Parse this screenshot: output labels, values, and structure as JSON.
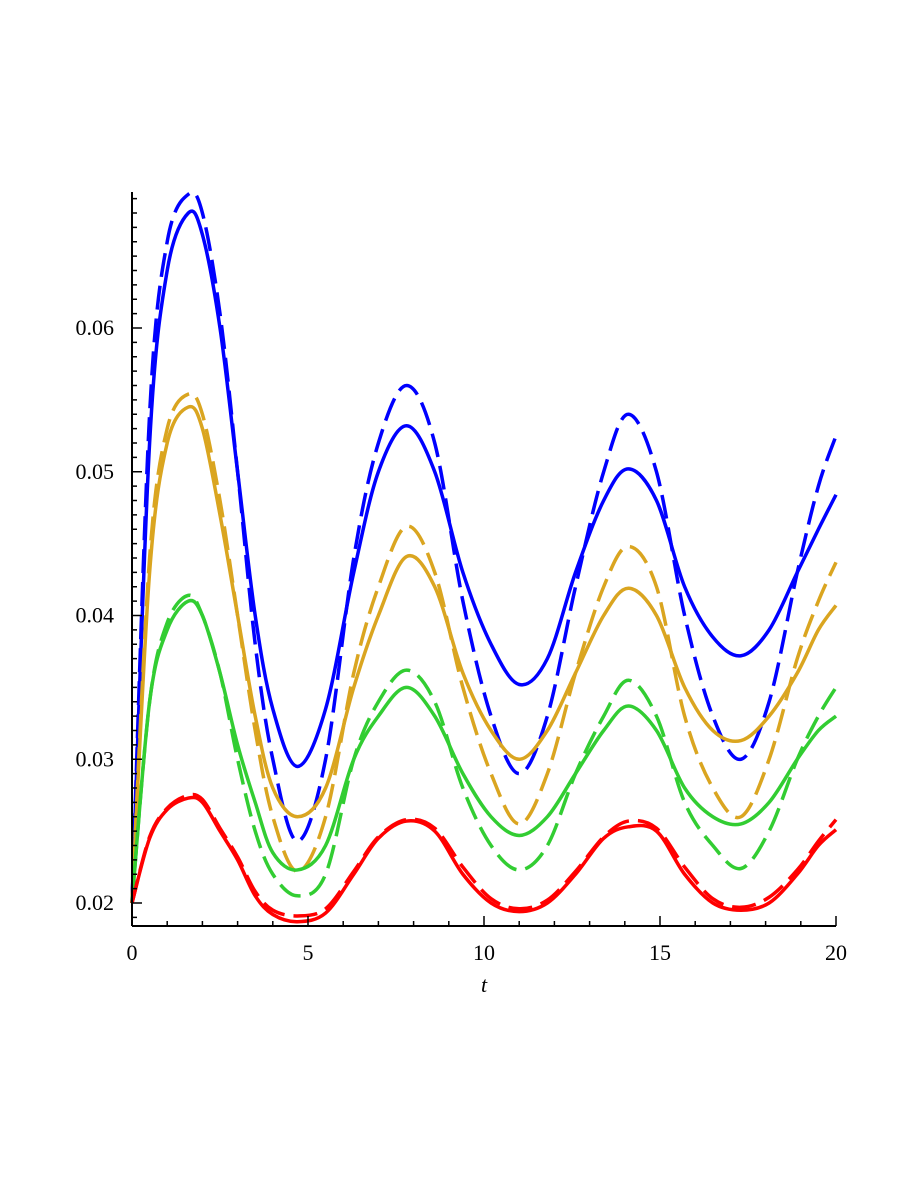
{
  "chart_data": {
    "type": "line",
    "title": "",
    "xlabel": "t",
    "ylabel": "",
    "xlim": [
      0,
      20
    ],
    "ylim": [
      0.0185,
      0.0695
    ],
    "x_ticks": [
      0,
      5,
      10,
      15,
      20
    ],
    "x_tick_labels": [
      "0",
      "5",
      "10",
      "15",
      "20"
    ],
    "y_ticks": [
      0.02,
      0.03,
      0.04,
      0.05,
      0.06
    ],
    "y_tick_labels": [
      "0.02",
      "0.03",
      "0.04",
      "0.05",
      "0.06"
    ],
    "grid": false,
    "legend": "none",
    "x": [
      0,
      0.5,
      1,
      1.6,
      2,
      2.5,
      3,
      3.5,
      4,
      4.7,
      5.5,
      6.3,
      7,
      7.8,
      8.6,
      9.4,
      10.2,
      11,
      11.8,
      12.6,
      13.4,
      14.1,
      14.9,
      15.7,
      16.5,
      17.3,
      18.1,
      18.9,
      19.5,
      20
    ],
    "series": [
      {
        "color": "#0000ff",
        "style": "solid",
        "values": [
          0.02,
          0.052,
          0.064,
          0.068,
          0.0665,
          0.06,
          0.05,
          0.04,
          0.0335,
          0.0295,
          0.0335,
          0.043,
          0.05,
          0.0532,
          0.05,
          0.043,
          0.038,
          0.0352,
          0.037,
          0.043,
          0.048,
          0.0502,
          0.048,
          0.042,
          0.0385,
          0.0372,
          0.039,
          0.043,
          0.046,
          0.0484
        ]
      },
      {
        "color": "#0000ff",
        "style": "dashed",
        "values": [
          0.02,
          0.054,
          0.066,
          0.0693,
          0.068,
          0.061,
          0.05,
          0.038,
          0.03,
          0.0243,
          0.03,
          0.044,
          0.052,
          0.056,
          0.052,
          0.041,
          0.033,
          0.029,
          0.033,
          0.042,
          0.05,
          0.054,
          0.05,
          0.04,
          0.033,
          0.03,
          0.034,
          0.043,
          0.049,
          0.0525
        ]
      },
      {
        "color": "#daa520",
        "style": "solid",
        "values": [
          0.02,
          0.043,
          0.052,
          0.0545,
          0.053,
          0.047,
          0.04,
          0.033,
          0.028,
          0.026,
          0.028,
          0.035,
          0.04,
          0.0441,
          0.042,
          0.036,
          0.032,
          0.03,
          0.032,
          0.036,
          0.04,
          0.0419,
          0.04,
          0.035,
          0.032,
          0.0313,
          0.033,
          0.036,
          0.039,
          0.0407
        ]
      },
      {
        "color": "#daa520",
        "style": "dashed",
        "values": [
          0.02,
          0.044,
          0.053,
          0.0554,
          0.054,
          0.048,
          0.04,
          0.032,
          0.026,
          0.0222,
          0.026,
          0.036,
          0.042,
          0.0462,
          0.043,
          0.035,
          0.029,
          0.0255,
          0.029,
          0.036,
          0.042,
          0.0448,
          0.042,
          0.033,
          0.028,
          0.026,
          0.03,
          0.037,
          0.041,
          0.0437
        ]
      },
      {
        "color": "#32cd32",
        "style": "solid",
        "values": [
          0.02,
          0.034,
          0.039,
          0.041,
          0.04,
          0.036,
          0.031,
          0.027,
          0.0235,
          0.0223,
          0.024,
          0.03,
          0.033,
          0.035,
          0.033,
          0.029,
          0.026,
          0.0247,
          0.026,
          0.029,
          0.032,
          0.0337,
          0.032,
          0.028,
          0.026,
          0.0255,
          0.027,
          0.03,
          0.032,
          0.033
        ]
      },
      {
        "color": "#32cd32",
        "style": "dashed",
        "values": [
          0.02,
          0.034,
          0.0395,
          0.0414,
          0.04,
          0.036,
          0.03,
          0.025,
          0.022,
          0.0205,
          0.022,
          0.03,
          0.034,
          0.0362,
          0.034,
          0.028,
          0.024,
          0.0223,
          0.024,
          0.029,
          0.033,
          0.0355,
          0.033,
          0.027,
          0.024,
          0.0224,
          0.025,
          0.03,
          0.033,
          0.035
        ]
      },
      {
        "color": "#ff0000",
        "style": "solid",
        "values": [
          0.02,
          0.0245,
          0.0265,
          0.0273,
          0.027,
          0.025,
          0.023,
          0.0205,
          0.0192,
          0.0187,
          0.0193,
          0.022,
          0.0245,
          0.0257,
          0.025,
          0.022,
          0.02,
          0.0194,
          0.02,
          0.022,
          0.0245,
          0.0253,
          0.025,
          0.022,
          0.02,
          0.0195,
          0.02,
          0.022,
          0.024,
          0.0251
        ]
      },
      {
        "color": "#ff0000",
        "style": "dashed",
        "values": [
          0.02,
          0.0246,
          0.0266,
          0.0275,
          0.0272,
          0.0252,
          0.0232,
          0.0208,
          0.0195,
          0.0191,
          0.0196,
          0.0222,
          0.0246,
          0.0258,
          0.0252,
          0.0225,
          0.0203,
          0.0196,
          0.0202,
          0.0222,
          0.0246,
          0.0257,
          0.0252,
          0.0225,
          0.0203,
          0.0197,
          0.0204,
          0.0223,
          0.0243,
          0.0258
        ]
      }
    ]
  }
}
